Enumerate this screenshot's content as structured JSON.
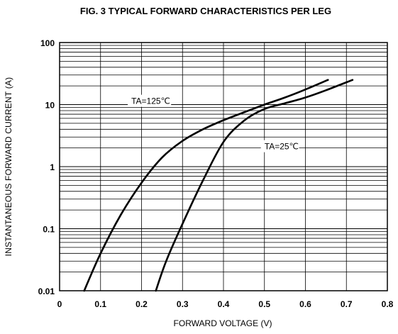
{
  "chart_data": {
    "type": "line",
    "title": "FIG. 3 TYPICAL FORWARD CHARACTERISTICS PER LEG",
    "xlabel": "FORWARD VOLTAGE (V)",
    "ylabel": "INSTANTANEOUS FORWARD CURRENT (A)",
    "xlim": [
      0,
      0.8
    ],
    "ylim": [
      0.01,
      100
    ],
    "y_scale": "log",
    "grid": true,
    "x_ticks": [
      "0",
      "0.1",
      "0.2",
      "0.3",
      "0.4",
      "0.5",
      "0.6",
      "0.7",
      "0.8"
    ],
    "y_ticks": [
      "0.01",
      "0.1",
      "1",
      "10",
      "100"
    ],
    "series": [
      {
        "name": "TA=125℃",
        "x": [
          0.06,
          0.1,
          0.15,
          0.2,
          0.25,
          0.3,
          0.35,
          0.4,
          0.45,
          0.5,
          0.55,
          0.6,
          0.655
        ],
        "y": [
          0.01,
          0.04,
          0.17,
          0.55,
          1.4,
          2.6,
          4.0,
          5.6,
          7.5,
          10.0,
          13.0,
          17.5,
          25.0
        ]
      },
      {
        "name": "TA=25℃",
        "x": [
          0.235,
          0.26,
          0.3,
          0.35,
          0.4,
          0.45,
          0.5,
          0.55,
          0.6,
          0.65,
          0.715
        ],
        "y": [
          0.01,
          0.03,
          0.12,
          0.6,
          2.5,
          5.5,
          8.5,
          10.5,
          13.0,
          17.0,
          25.0
        ]
      }
    ],
    "annotations": [
      {
        "text": "TA=125℃",
        "x": 0.175,
        "y": 10.5
      },
      {
        "text": "TA=25℃",
        "x": 0.5,
        "y": 1.95
      }
    ]
  }
}
